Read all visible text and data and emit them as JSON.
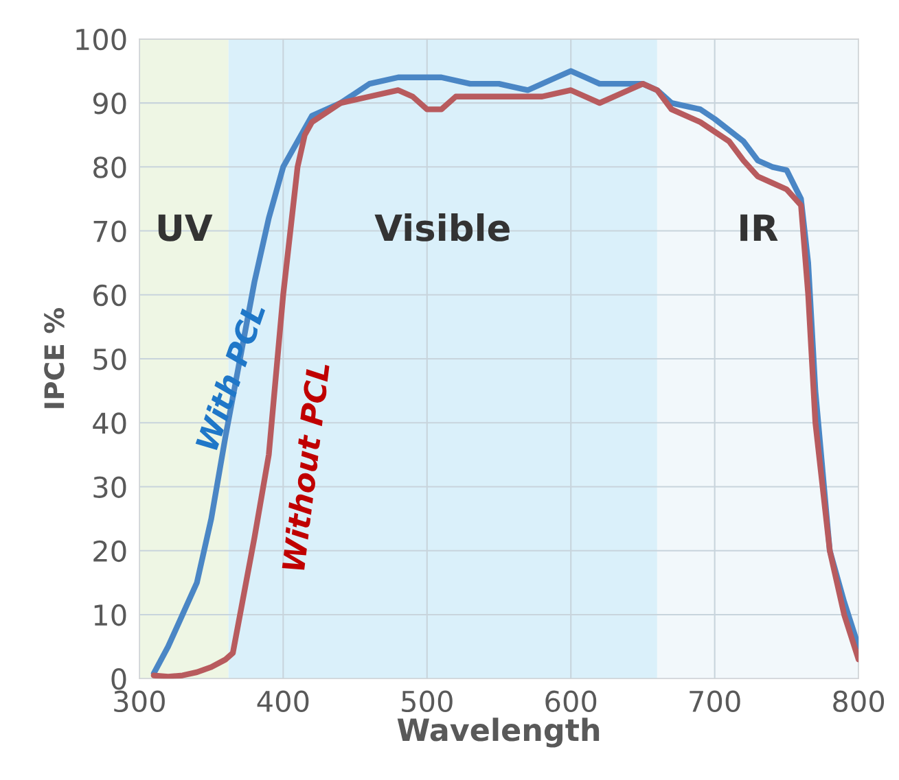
{
  "chart_data": {
    "type": "line",
    "xlabel": "Wavelength",
    "ylabel": "IPCE %",
    "xlim": [
      300,
      800
    ],
    "xticks": [
      300,
      400,
      500,
      600,
      700,
      800
    ],
    "ylim": [
      0,
      100
    ],
    "yticks": [
      0,
      10,
      20,
      30,
      40,
      50,
      60,
      70,
      80,
      90,
      100
    ],
    "grid": true,
    "legend": false,
    "marker": "none",
    "line_style": "solid",
    "bands": [
      {
        "axis": "x",
        "from": 300,
        "to": 362,
        "label": "UV",
        "color": "#eef6e4"
      },
      {
        "axis": "x",
        "from": 362,
        "to": 660,
        "label": "Visible",
        "color": "#daf0fa"
      },
      {
        "axis": "x",
        "from": 660,
        "to": 800,
        "label": "IR",
        "color": "#f2f8fb"
      }
    ],
    "series": [
      {
        "name": "With PCL",
        "color": "#4a86c5",
        "x": [
          310,
          320,
          330,
          340,
          350,
          360,
          370,
          380,
          390,
          400,
          410,
          420,
          440,
          460,
          480,
          500,
          510,
          530,
          550,
          570,
          590,
          600,
          610,
          620,
          640,
          650,
          660,
          670,
          690,
          700,
          720,
          730,
          740,
          750,
          760,
          765,
          770,
          780,
          790,
          800
        ],
        "values": [
          0.8,
          5,
          10,
          15,
          25,
          38,
          50,
          62,
          72,
          80,
          84,
          88,
          90,
          93,
          94,
          94,
          94,
          93,
          93,
          92,
          94,
          95,
          94,
          93,
          93,
          93,
          92,
          90,
          89,
          87.5,
          84,
          81,
          80,
          79.5,
          75,
          65,
          45,
          20,
          12,
          5
        ]
      },
      {
        "name": "Without PCL",
        "color": "#b85b5e",
        "x": [
          310,
          320,
          330,
          340,
          350,
          360,
          365,
          370,
          380,
          390,
          400,
          410,
          415,
          420,
          440,
          460,
          480,
          490,
          500,
          510,
          520,
          540,
          560,
          580,
          600,
          610,
          620,
          640,
          650,
          660,
          670,
          690,
          700,
          710,
          720,
          730,
          740,
          750,
          760,
          765,
          770,
          780,
          790,
          800
        ],
        "values": [
          0.5,
          0.3,
          0.5,
          1,
          1.8,
          3,
          4,
          10,
          22,
          35,
          60,
          80,
          85,
          87,
          90,
          91,
          92,
          91,
          89,
          89,
          91,
          91,
          91,
          91,
          92,
          91,
          90,
          92,
          93,
          92,
          89,
          87,
          85.5,
          84,
          81,
          78.5,
          77.5,
          76.5,
          74,
          60,
          40,
          20,
          10,
          3
        ]
      }
    ]
  }
}
